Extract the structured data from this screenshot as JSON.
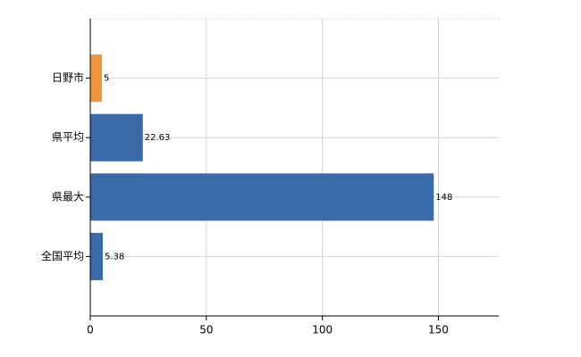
{
  "chart_data": {
    "type": "bar",
    "orientation": "horizontal",
    "categories": [
      "日野市",
      "県平均",
      "県最大",
      "全国平均"
    ],
    "values": [
      5,
      22.63,
      148,
      5.38
    ],
    "colors": [
      "#f0953a",
      "#3a6aa8",
      "#3a6aa8",
      "#3a6aa8"
    ],
    "xlim": [
      0,
      176
    ],
    "xticks": [
      0,
      50,
      100,
      150
    ],
    "grid": true
  }
}
